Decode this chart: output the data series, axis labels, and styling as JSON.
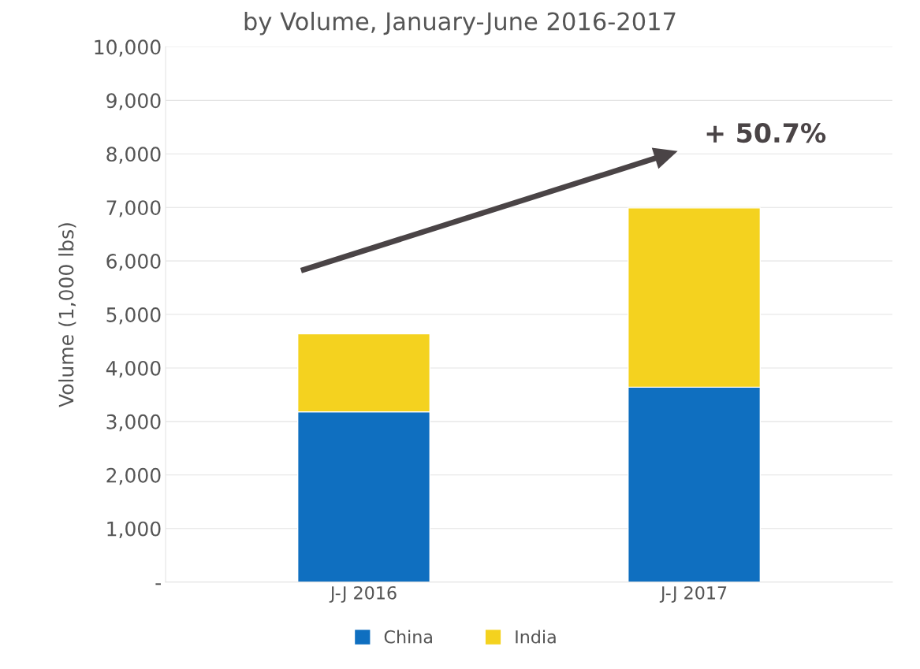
{
  "chart_data": {
    "type": "bar",
    "title": "by Volume, January-June 2016-2017",
    "ylabel": "Volume (1,000 lbs)",
    "categories": [
      "J-J 2016",
      "J-J 2017"
    ],
    "series": [
      {
        "name": "China",
        "color": "#0f6fc0",
        "values": [
          3180,
          3640
        ]
      },
      {
        "name": "India",
        "color": "#f4d21f",
        "values": [
          1460,
          3350
        ]
      }
    ],
    "stacked": true,
    "ylim": [
      0,
      10000
    ],
    "yticks": [
      {
        "value": 0,
        "label": "-"
      },
      {
        "value": 1000,
        "label": "1,000"
      },
      {
        "value": 2000,
        "label": "2,000"
      },
      {
        "value": 3000,
        "label": "3,000"
      },
      {
        "value": 4000,
        "label": "4,000"
      },
      {
        "value": 5000,
        "label": "5,000"
      },
      {
        "value": 6000,
        "label": "6,000"
      },
      {
        "value": 7000,
        "label": "7,000"
      },
      {
        "value": 8000,
        "label": "8,000"
      },
      {
        "value": 9000,
        "label": "9,000"
      },
      {
        "value": 10000,
        "label": "10,000"
      }
    ],
    "grid": "y",
    "legend": "bottom",
    "annotations": [
      "+ 50.7%"
    ]
  }
}
